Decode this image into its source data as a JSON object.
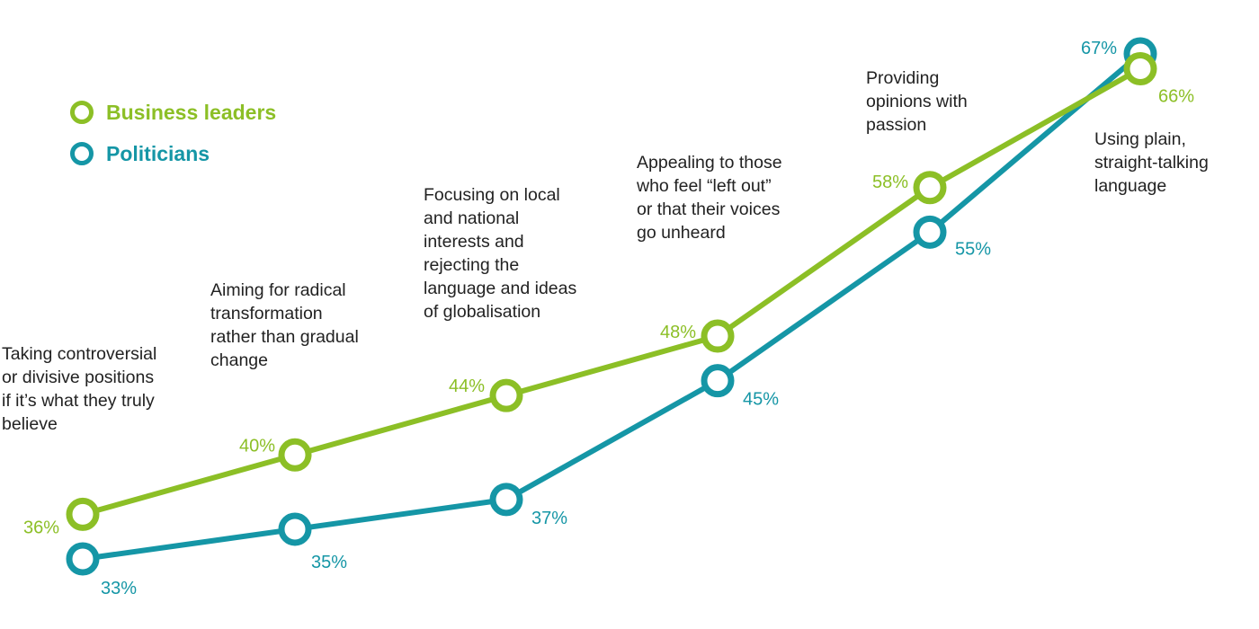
{
  "colors": {
    "business": "#8cbf26",
    "politicians": "#1596a6"
  },
  "legend": [
    {
      "name": "Business leaders",
      "color": "#8cbf26"
    },
    {
      "name": "Politicians",
      "color": "#1596a6"
    }
  ],
  "chart_data": {
    "type": "line",
    "title": "",
    "xlabel": "",
    "ylabel": "",
    "grid": false,
    "legend_position": "top-left",
    "categories": [
      "Taking controversial\nor divisive positions\nif it’s what they truly\nbelieve",
      "Aiming for radical\ntransformation\nrather than gradual\nchange",
      "Focusing on local\nand national\ninterests and\nrejecting the\nlanguage and ideas\nof globalisation",
      "Appealing to those\nwho feel “left out”\nor that their voices\ngo unheard",
      "Providing\nopinions with\npassion",
      "Using plain,\nstraight-talking\nlanguage"
    ],
    "series": [
      {
        "name": "Business leaders",
        "color": "#8cbf26",
        "values": [
          36,
          40,
          44,
          48,
          58,
          66
        ],
        "labels": [
          "36%",
          "40%",
          "44%",
          "48%",
          "58%",
          "66%"
        ]
      },
      {
        "name": "Politicians",
        "color": "#1596a6",
        "values": [
          33,
          35,
          37,
          45,
          55,
          67
        ],
        "labels": [
          "33%",
          "35%",
          "37%",
          "45%",
          "55%",
          "67%"
        ]
      }
    ]
  }
}
